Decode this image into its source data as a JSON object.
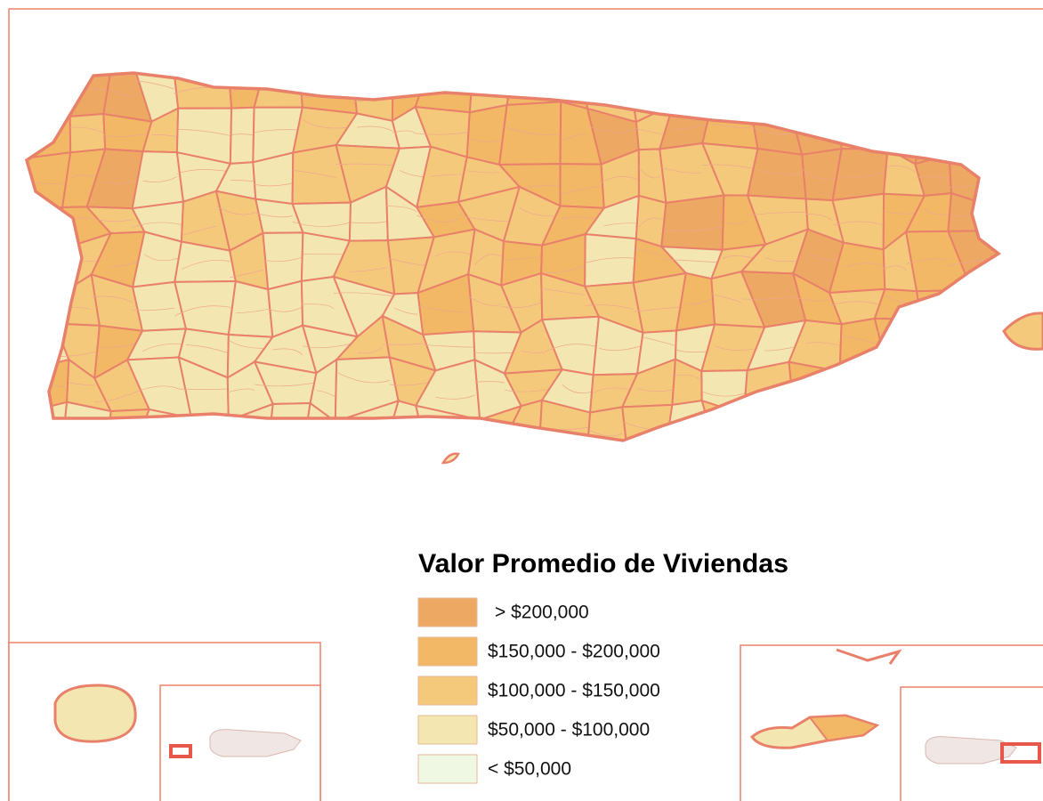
{
  "legend": {
    "title": "Valor Promedio de Viviendas",
    "items": [
      {
        "label": "> $200,000",
        "color": "#eda863"
      },
      {
        "label": "$150,000 - $200,000",
        "color": "#f2b865"
      },
      {
        "label": "$100,000 - $150,000",
        "color": "#f5c97c"
      },
      {
        "label": "$50,000 - $100,000",
        "color": "#f4e6b0"
      },
      {
        "label": "< $50,000",
        "color": "#eef8e3"
      }
    ]
  }
}
